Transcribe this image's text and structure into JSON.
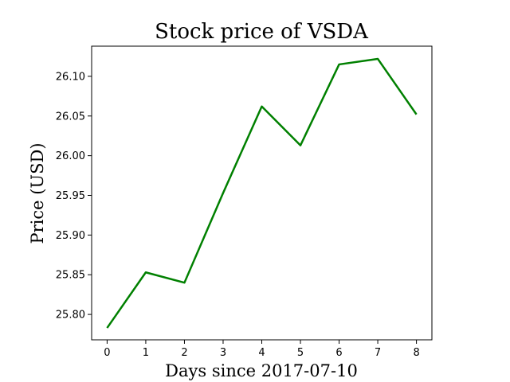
{
  "chart_data": {
    "type": "line",
    "title": "Stock price of VSDA",
    "xlabel": "Days since 2017-07-10",
    "ylabel": "Price (USD)",
    "x": [
      0,
      1,
      2,
      3,
      4,
      5,
      6,
      7,
      8
    ],
    "xticks": [
      0,
      1,
      2,
      3,
      4,
      5,
      6,
      7,
      8
    ],
    "xlim": [
      -0.4,
      8.4
    ],
    "ylim": [
      25.768,
      26.138
    ],
    "yticks": [
      "25.80",
      "25.85",
      "25.90",
      "25.95",
      "26.00",
      "26.05",
      "26.10"
    ],
    "grid": false,
    "series": [
      {
        "color": "#008000",
        "values": [
          25.783,
          25.853,
          25.84,
          25.953,
          26.062,
          26.013,
          26.115,
          26.122,
          26.052
        ]
      }
    ]
  }
}
